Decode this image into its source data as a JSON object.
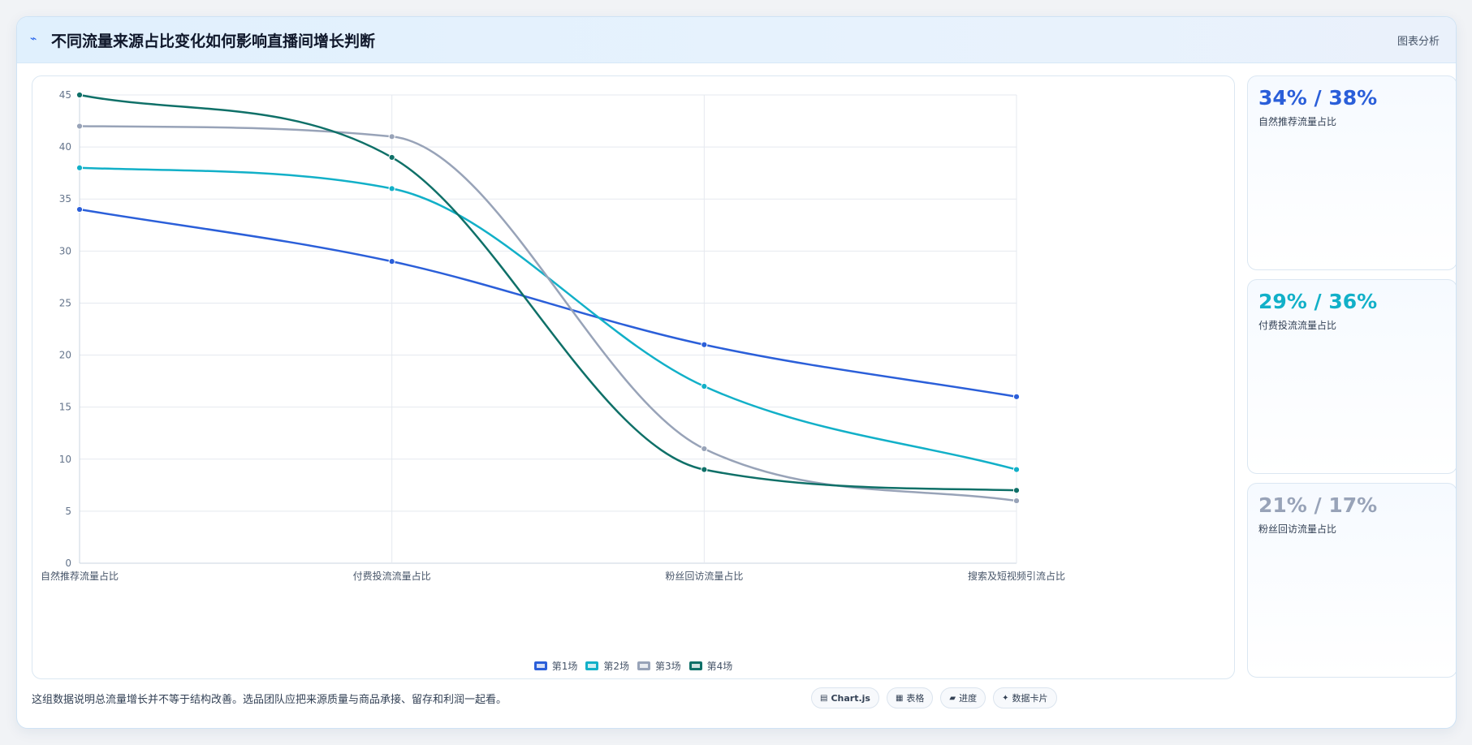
{
  "header": {
    "title": "不同流量来源占比变化如何影响直播间增长判断",
    "tag": "图表分析"
  },
  "colors": {
    "accent": "#2563eb",
    "series": [
      "#2b5fd9",
      "#12b0c8",
      "#98a3b8",
      "#0f7068"
    ]
  },
  "chart_data": {
    "type": "line",
    "categories": [
      "自然推荐流量占比",
      "付费投流流量占比",
      "粉丝回访流量占比",
      "搜索及短视频引流占比"
    ],
    "series": [
      {
        "name": "第1场",
        "values": [
          34,
          29,
          21,
          16
        ]
      },
      {
        "name": "第2场",
        "values": [
          38,
          36,
          17,
          9
        ]
      },
      {
        "name": "第3场",
        "values": [
          42,
          41,
          11,
          6
        ]
      },
      {
        "name": "第4场",
        "values": [
          45,
          39,
          9,
          7
        ]
      }
    ],
    "ylim": [
      0,
      45
    ],
    "yticks": [
      "0",
      "5",
      "10",
      "15",
      "20",
      "25",
      "30",
      "35",
      "40",
      "45"
    ],
    "grid": true,
    "legend": "bottom-center",
    "smooth": true
  },
  "stats": [
    {
      "value": "34% / 38%",
      "label": "自然推荐流量占比",
      "color": "#2b5fd9"
    },
    {
      "value": "29% / 36%",
      "label": "付费投流流量占比",
      "color": "#12b0c8"
    },
    {
      "value": "21% / 17%",
      "label": "粉丝回访流量占比",
      "color": "#98a3b8"
    }
  ],
  "footer": {
    "note": "这组数据说明总流量增长并不等于结构改善。选品团队应把来源质量与商品承接、留存和利润一起看。",
    "actions": [
      {
        "icon": "▤",
        "label": "Chart.js",
        "icon_name": "chart-icon"
      },
      {
        "icon": "▦",
        "label": "表格",
        "icon_name": "table-icon"
      },
      {
        "icon": "▰",
        "label": "进度",
        "icon_name": "progress-icon"
      },
      {
        "icon": "✦",
        "label": "数据卡片",
        "icon_name": "card-icon"
      }
    ]
  }
}
